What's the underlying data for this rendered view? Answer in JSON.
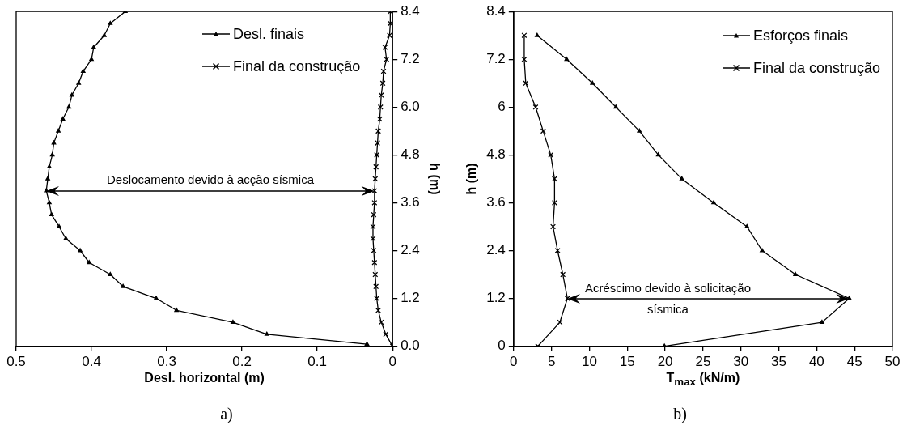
{
  "chart_data": [
    {
      "type": "line",
      "xlabel": "Desl. horizontal (m)",
      "ylabel": "h (m)",
      "xlim": [
        0.5,
        0
      ],
      "xticks": [
        0.5,
        0.4,
        0.3,
        0.2,
        0.1,
        0
      ],
      "ylim": [
        0,
        8.4
      ],
      "yticks": [
        {
          "value": 0,
          "label": "0.0"
        },
        1.2,
        2.4,
        3.6,
        4.8,
        {
          "value": 6,
          "label": "6.0"
        },
        7.2,
        8.4
      ],
      "grid": false,
      "legend": "top right",
      "line_style": "solid",
      "annotations": [
        "Deslocamento devido à acção sísmica",
        "a)"
      ],
      "series": [
        {
          "name": "Desl. finais",
          "color": "#000000",
          "marker": "triangle",
          "values": [
            8.4,
            8.1,
            7.8,
            7.5,
            7.2,
            6.9,
            6.6,
            6.3,
            6.0,
            5.7,
            5.4,
            5.1,
            4.8,
            4.5,
            4.2,
            3.9,
            3.6,
            3.3,
            3.0,
            2.7,
            2.4,
            2.1,
            1.8,
            1.5,
            1.2,
            0.9,
            0.6,
            0.3,
            0.05
          ],
          "x": [
            0.355,
            0.375,
            0.383,
            0.397,
            0.4,
            0.411,
            0.417,
            0.426,
            0.43,
            0.438,
            0.444,
            0.45,
            0.452,
            0.456,
            0.458,
            0.46,
            0.456,
            0.453,
            0.443,
            0.434,
            0.415,
            0.403,
            0.375,
            0.358,
            0.314,
            0.287,
            0.212,
            0.167,
            0.034
          ]
        },
        {
          "name": "Final da construção",
          "color": "#000000",
          "marker": "cross",
          "values": [
            8.4,
            8.1,
            7.8,
            7.5,
            7.2,
            6.9,
            6.6,
            6.3,
            6.0,
            5.7,
            5.4,
            5.1,
            4.8,
            4.5,
            4.2,
            3.9,
            3.6,
            3.3,
            3.0,
            2.7,
            2.4,
            2.1,
            1.8,
            1.5,
            1.2,
            0.9,
            0.6,
            0.3,
            0
          ],
          "x": [
            0.003,
            0.003,
            0.004,
            0.01,
            0.008,
            0.012,
            0.013,
            0.015,
            0.016,
            0.017,
            0.019,
            0.02,
            0.021,
            0.022,
            0.023,
            0.024,
            0.024,
            0.025,
            0.026,
            0.026,
            0.025,
            0.024,
            0.023,
            0.022,
            0.021,
            0.019,
            0.015,
            0.009,
            0
          ]
        }
      ]
    },
    {
      "type": "line",
      "xlabel": "T$_{max}$ (kN/m)",
      "ylabel": "h (m)",
      "xlim": [
        0,
        50
      ],
      "xticks": [
        0,
        5,
        10,
        15,
        20,
        25,
        30,
        35,
        40,
        45,
        50
      ],
      "ylim": [
        0,
        8.4
      ],
      "yticks": [
        0,
        1.2,
        2.4,
        3.6,
        4.8,
        6,
        7.2,
        8.4
      ],
      "grid": false,
      "legend": "top right",
      "line_style": "solid",
      "annotations": [
        "Acréscimo devido à solicitação sísmica",
        "b)"
      ],
      "series": [
        {
          "name": "Esforços finais",
          "color": "#000000",
          "marker": "triangle",
          "values": [
            7.8,
            7.2,
            6.6,
            6.0,
            5.4,
            4.8,
            4.2,
            3.6,
            3.0,
            2.4,
            1.8,
            1.2,
            0.6,
            0
          ],
          "x": [
            3.1,
            7.0,
            10.4,
            13.5,
            16.6,
            19.1,
            22.2,
            26.4,
            30.8,
            32.8,
            37.2,
            44.3,
            40.7,
            19.9
          ]
        },
        {
          "name": "Final da construção",
          "color": "#000000",
          "marker": "cross",
          "values": [
            7.8,
            7.2,
            6.6,
            6.0,
            5.4,
            4.8,
            4.2,
            3.6,
            3.0,
            2.4,
            1.8,
            1.2,
            0.6,
            0
          ],
          "x": [
            1.4,
            1.4,
            1.6,
            2.9,
            3.9,
            4.9,
            5.4,
            5.4,
            5.2,
            5.8,
            6.5,
            7.1,
            6.1,
            3.2
          ]
        }
      ]
    }
  ]
}
